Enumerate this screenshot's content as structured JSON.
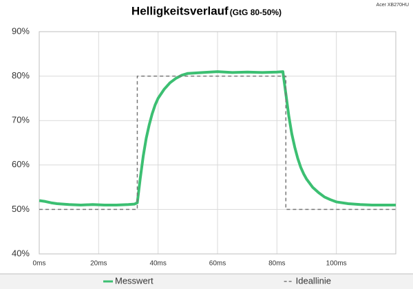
{
  "chart_data": {
    "type": "line",
    "title": "Helligkeitsverlauf",
    "subtitle": "(GtG 80-50%)",
    "annotation": "Acer XB270HU",
    "xlim": [
      0,
      120
    ],
    "xticks": [
      {
        "value": 0,
        "label": "0ms"
      },
      {
        "value": 20,
        "label": "20ms"
      },
      {
        "value": 40,
        "label": "40ms"
      },
      {
        "value": 60,
        "label": "60ms"
      },
      {
        "value": 80,
        "label": "80ms"
      },
      {
        "value": 100,
        "label": "100ms"
      }
    ],
    "ylim": [
      40,
      90
    ],
    "yticks": [
      {
        "value": 40,
        "label": "40%"
      },
      {
        "value": 50,
        "label": "50%"
      },
      {
        "value": 60,
        "label": "60%"
      },
      {
        "value": 70,
        "label": "70%"
      },
      {
        "value": 80,
        "label": "80%"
      },
      {
        "value": 90,
        "label": "90%"
      }
    ],
    "grid": true,
    "legend": "bottom",
    "series": [
      {
        "name": "Messwert",
        "color": "#3cbf72",
        "dash": false,
        "x": [
          0,
          2,
          4,
          6,
          8,
          10,
          14,
          18,
          22,
          26,
          30,
          32,
          33,
          34,
          35,
          36,
          37,
          38,
          39,
          40,
          42,
          44,
          46,
          48,
          50,
          55,
          60,
          65,
          70,
          75,
          80,
          82,
          83,
          84,
          85,
          86,
          87,
          88,
          89,
          90,
          92,
          94,
          96,
          98,
          100,
          104,
          108,
          112,
          116,
          120
        ],
        "values": [
          52,
          51.8,
          51.5,
          51.3,
          51.2,
          51.1,
          51,
          51.1,
          51,
          51,
          51.1,
          51.2,
          51.5,
          57,
          62,
          66,
          69,
          71.5,
          73.5,
          75,
          77,
          78.5,
          79.5,
          80.2,
          80.6,
          80.8,
          81,
          80.8,
          80.9,
          80.8,
          80.9,
          81,
          76,
          71,
          67,
          64,
          61.5,
          59.5,
          58,
          56.8,
          55,
          53.8,
          52.8,
          52.2,
          51.7,
          51.3,
          51.1,
          51,
          51,
          51
        ]
      },
      {
        "name": "Ideallinie",
        "color": "#777777",
        "dash": true,
        "x": [
          0,
          33,
          33,
          83,
          83,
          120
        ],
        "values": [
          50,
          50,
          80,
          80,
          50,
          50
        ]
      }
    ]
  }
}
